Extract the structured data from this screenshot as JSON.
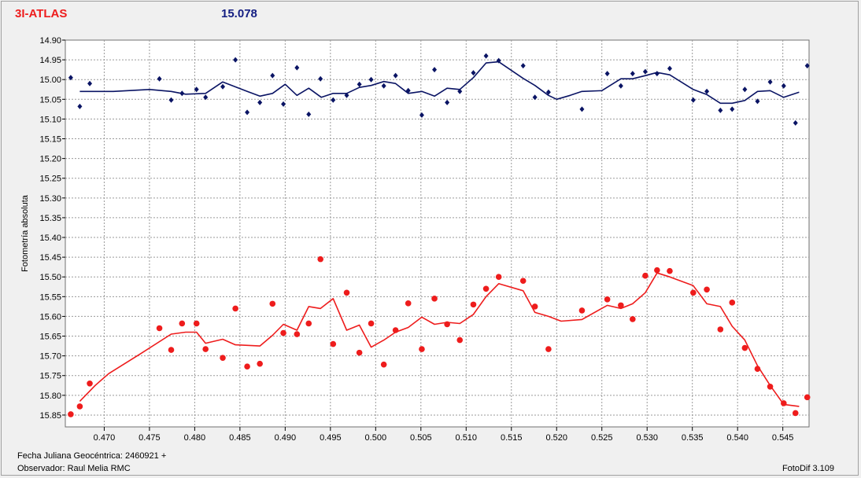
{
  "header": {
    "object_name": "3I-ATLAS",
    "magnitude": "15.078"
  },
  "footer": {
    "julian_date_label": "Fecha Juliana Geocéntrica: 2460921 +",
    "observer_label": "Observador: Raul Melia RMC",
    "software_label": "FotoDif 3.109"
  },
  "colors": {
    "series_blue": "#0a1464",
    "series_red": "#ee1c1c",
    "grid": "#9a9a9a"
  },
  "chart_data": {
    "type": "scatter",
    "title": "",
    "xlabel": "",
    "ylabel": "Fotometría absoluta",
    "xlim": [
      0.4657,
      0.5479
    ],
    "ylim": [
      15.88,
      14.9
    ],
    "y_inverted": true,
    "grid": true,
    "x_ticks": [
      "0.470",
      "0.475",
      "0.480",
      "0.485",
      "0.490",
      "0.495",
      "0.500",
      "0.505",
      "0.510",
      "0.515",
      "0.520",
      "0.525",
      "0.530",
      "0.535",
      "0.540",
      "0.545"
    ],
    "y_ticks": [
      "14.90",
      "14.95",
      "15.00",
      "15.05",
      "15.10",
      "15.15",
      "15.20",
      "15.25",
      "15.30",
      "15.35",
      "15.40",
      "15.45",
      "15.50",
      "15.55",
      "15.60",
      "15.65",
      "15.70",
      "15.75",
      "15.80",
      "15.85"
    ],
    "series": [
      {
        "color": "#0a1464",
        "marker": "diamond",
        "points": [
          [
            0.4663,
            14.995
          ],
          [
            0.4673,
            15.068
          ],
          [
            0.4684,
            15.01
          ],
          [
            0.4761,
            14.998
          ],
          [
            0.4774,
            15.052
          ],
          [
            0.4786,
            15.035
          ],
          [
            0.4802,
            15.025
          ],
          [
            0.4812,
            15.045
          ],
          [
            0.4831,
            15.018
          ],
          [
            0.4845,
            14.95
          ],
          [
            0.4858,
            15.083
          ],
          [
            0.4872,
            15.058
          ],
          [
            0.4886,
            14.99
          ],
          [
            0.4898,
            15.062
          ],
          [
            0.4913,
            14.97
          ],
          [
            0.4926,
            15.088
          ],
          [
            0.4939,
            14.998
          ],
          [
            0.4953,
            15.052
          ],
          [
            0.4968,
            15.04
          ],
          [
            0.4982,
            15.012
          ],
          [
            0.4995,
            15.0
          ],
          [
            0.5009,
            15.016
          ],
          [
            0.5022,
            14.99
          ],
          [
            0.5036,
            15.028
          ],
          [
            0.5051,
            15.09
          ],
          [
            0.5065,
            14.975
          ],
          [
            0.5079,
            15.058
          ],
          [
            0.5093,
            15.03
          ],
          [
            0.5108,
            14.983
          ],
          [
            0.5122,
            14.94
          ],
          [
            0.5136,
            14.952
          ],
          [
            0.5163,
            14.965
          ],
          [
            0.5176,
            15.045
          ],
          [
            0.5191,
            15.032
          ],
          [
            0.5228,
            15.075
          ],
          [
            0.5256,
            14.985
          ],
          [
            0.5271,
            15.016
          ],
          [
            0.5284,
            14.985
          ],
          [
            0.5298,
            14.98
          ],
          [
            0.5311,
            14.985
          ],
          [
            0.5325,
            14.972
          ],
          [
            0.5351,
            15.052
          ],
          [
            0.5366,
            15.03
          ],
          [
            0.5381,
            15.078
          ],
          [
            0.5394,
            15.075
          ],
          [
            0.5408,
            15.025
          ],
          [
            0.5422,
            15.055
          ],
          [
            0.5436,
            15.006
          ],
          [
            0.5451,
            15.016
          ],
          [
            0.5464,
            15.11
          ],
          [
            0.5477,
            14.965
          ]
        ],
        "trend": [
          [
            0.4673,
            15.03
          ],
          [
            0.469,
            15.03
          ],
          [
            0.471,
            15.03
          ],
          [
            0.475,
            15.025
          ],
          [
            0.4774,
            15.03
          ],
          [
            0.479,
            15.037
          ],
          [
            0.4812,
            15.035
          ],
          [
            0.4831,
            15.006
          ],
          [
            0.4858,
            15.03
          ],
          [
            0.4872,
            15.042
          ],
          [
            0.4886,
            15.035
          ],
          [
            0.49,
            15.012
          ],
          [
            0.4913,
            15.04
          ],
          [
            0.4926,
            15.022
          ],
          [
            0.494,
            15.045
          ],
          [
            0.4953,
            15.035
          ],
          [
            0.4968,
            15.035
          ],
          [
            0.4982,
            15.02
          ],
          [
            0.4995,
            15.015
          ],
          [
            0.5009,
            15.005
          ],
          [
            0.5022,
            15.01
          ],
          [
            0.5036,
            15.035
          ],
          [
            0.5051,
            15.03
          ],
          [
            0.5065,
            15.042
          ],
          [
            0.5079,
            15.022
          ],
          [
            0.5093,
            15.025
          ],
          [
            0.5108,
            14.995
          ],
          [
            0.5122,
            14.958
          ],
          [
            0.5136,
            14.955
          ],
          [
            0.5163,
            14.997
          ],
          [
            0.5176,
            15.015
          ],
          [
            0.5191,
            15.04
          ],
          [
            0.52,
            15.05
          ],
          [
            0.5215,
            15.04
          ],
          [
            0.5228,
            15.03
          ],
          [
            0.525,
            15.028
          ],
          [
            0.5271,
            14.998
          ],
          [
            0.5284,
            14.998
          ],
          [
            0.5298,
            14.99
          ],
          [
            0.5311,
            14.982
          ],
          [
            0.5325,
            14.988
          ],
          [
            0.5351,
            15.025
          ],
          [
            0.5366,
            15.038
          ],
          [
            0.5381,
            15.06
          ],
          [
            0.5394,
            15.06
          ],
          [
            0.5408,
            15.053
          ],
          [
            0.5422,
            15.03
          ],
          [
            0.5436,
            15.028
          ],
          [
            0.5451,
            15.045
          ],
          [
            0.5468,
            15.032
          ]
        ]
      },
      {
        "color": "#ee1c1c",
        "marker": "circle",
        "points": [
          [
            0.4663,
            15.848
          ],
          [
            0.4673,
            15.828
          ],
          [
            0.4684,
            15.77
          ],
          [
            0.4761,
            15.63
          ],
          [
            0.4774,
            15.685
          ],
          [
            0.4786,
            15.618
          ],
          [
            0.4802,
            15.618
          ],
          [
            0.4812,
            15.683
          ],
          [
            0.4831,
            15.705
          ],
          [
            0.4845,
            15.58
          ],
          [
            0.4858,
            15.727
          ],
          [
            0.4872,
            15.72
          ],
          [
            0.4886,
            15.568
          ],
          [
            0.4898,
            15.642
          ],
          [
            0.4913,
            15.645
          ],
          [
            0.4926,
            15.618
          ],
          [
            0.4939,
            15.455
          ],
          [
            0.4953,
            15.67
          ],
          [
            0.4968,
            15.54
          ],
          [
            0.4982,
            15.692
          ],
          [
            0.4995,
            15.618
          ],
          [
            0.5009,
            15.722
          ],
          [
            0.5022,
            15.635
          ],
          [
            0.5036,
            15.567
          ],
          [
            0.5051,
            15.683
          ],
          [
            0.5065,
            15.555
          ],
          [
            0.5079,
            15.62
          ],
          [
            0.5093,
            15.66
          ],
          [
            0.5108,
            15.57
          ],
          [
            0.5122,
            15.53
          ],
          [
            0.5136,
            15.5
          ],
          [
            0.5163,
            15.51
          ],
          [
            0.5176,
            15.575
          ],
          [
            0.5191,
            15.683
          ],
          [
            0.5228,
            15.585
          ],
          [
            0.5256,
            15.557
          ],
          [
            0.5271,
            15.572
          ],
          [
            0.5284,
            15.607
          ],
          [
            0.5298,
            15.497
          ],
          [
            0.5311,
            15.483
          ],
          [
            0.5325,
            15.485
          ],
          [
            0.5351,
            15.54
          ],
          [
            0.5366,
            15.532
          ],
          [
            0.5381,
            15.633
          ],
          [
            0.5394,
            15.565
          ],
          [
            0.5408,
            15.68
          ],
          [
            0.5422,
            15.733
          ],
          [
            0.5436,
            15.778
          ],
          [
            0.5451,
            15.82
          ],
          [
            0.5464,
            15.845
          ],
          [
            0.5477,
            15.805
          ]
        ],
        "trend": [
          [
            0.4673,
            15.815
          ],
          [
            0.469,
            15.775
          ],
          [
            0.4705,
            15.745
          ],
          [
            0.474,
            15.695
          ],
          [
            0.4774,
            15.645
          ],
          [
            0.479,
            15.64
          ],
          [
            0.4802,
            15.64
          ],
          [
            0.4812,
            15.668
          ],
          [
            0.4831,
            15.658
          ],
          [
            0.4845,
            15.672
          ],
          [
            0.4872,
            15.675
          ],
          [
            0.4886,
            15.648
          ],
          [
            0.4898,
            15.62
          ],
          [
            0.4913,
            15.635
          ],
          [
            0.4926,
            15.575
          ],
          [
            0.4939,
            15.58
          ],
          [
            0.4953,
            15.555
          ],
          [
            0.4968,
            15.635
          ],
          [
            0.4982,
            15.622
          ],
          [
            0.4995,
            15.678
          ],
          [
            0.5009,
            15.66
          ],
          [
            0.5022,
            15.64
          ],
          [
            0.5036,
            15.628
          ],
          [
            0.5051,
            15.602
          ],
          [
            0.5065,
            15.62
          ],
          [
            0.5079,
            15.615
          ],
          [
            0.5093,
            15.618
          ],
          [
            0.5108,
            15.595
          ],
          [
            0.5122,
            15.55
          ],
          [
            0.5136,
            15.517
          ],
          [
            0.5163,
            15.535
          ],
          [
            0.5176,
            15.59
          ],
          [
            0.5191,
            15.6
          ],
          [
            0.5205,
            15.612
          ],
          [
            0.5228,
            15.608
          ],
          [
            0.5256,
            15.572
          ],
          [
            0.5271,
            15.58
          ],
          [
            0.5284,
            15.568
          ],
          [
            0.5298,
            15.54
          ],
          [
            0.5311,
            15.49
          ],
          [
            0.5325,
            15.5
          ],
          [
            0.5351,
            15.522
          ],
          [
            0.5366,
            15.568
          ],
          [
            0.5381,
            15.575
          ],
          [
            0.5394,
            15.625
          ],
          [
            0.5408,
            15.66
          ],
          [
            0.5422,
            15.725
          ],
          [
            0.5436,
            15.775
          ],
          [
            0.5451,
            15.823
          ],
          [
            0.5468,
            15.828
          ]
        ]
      }
    ]
  }
}
